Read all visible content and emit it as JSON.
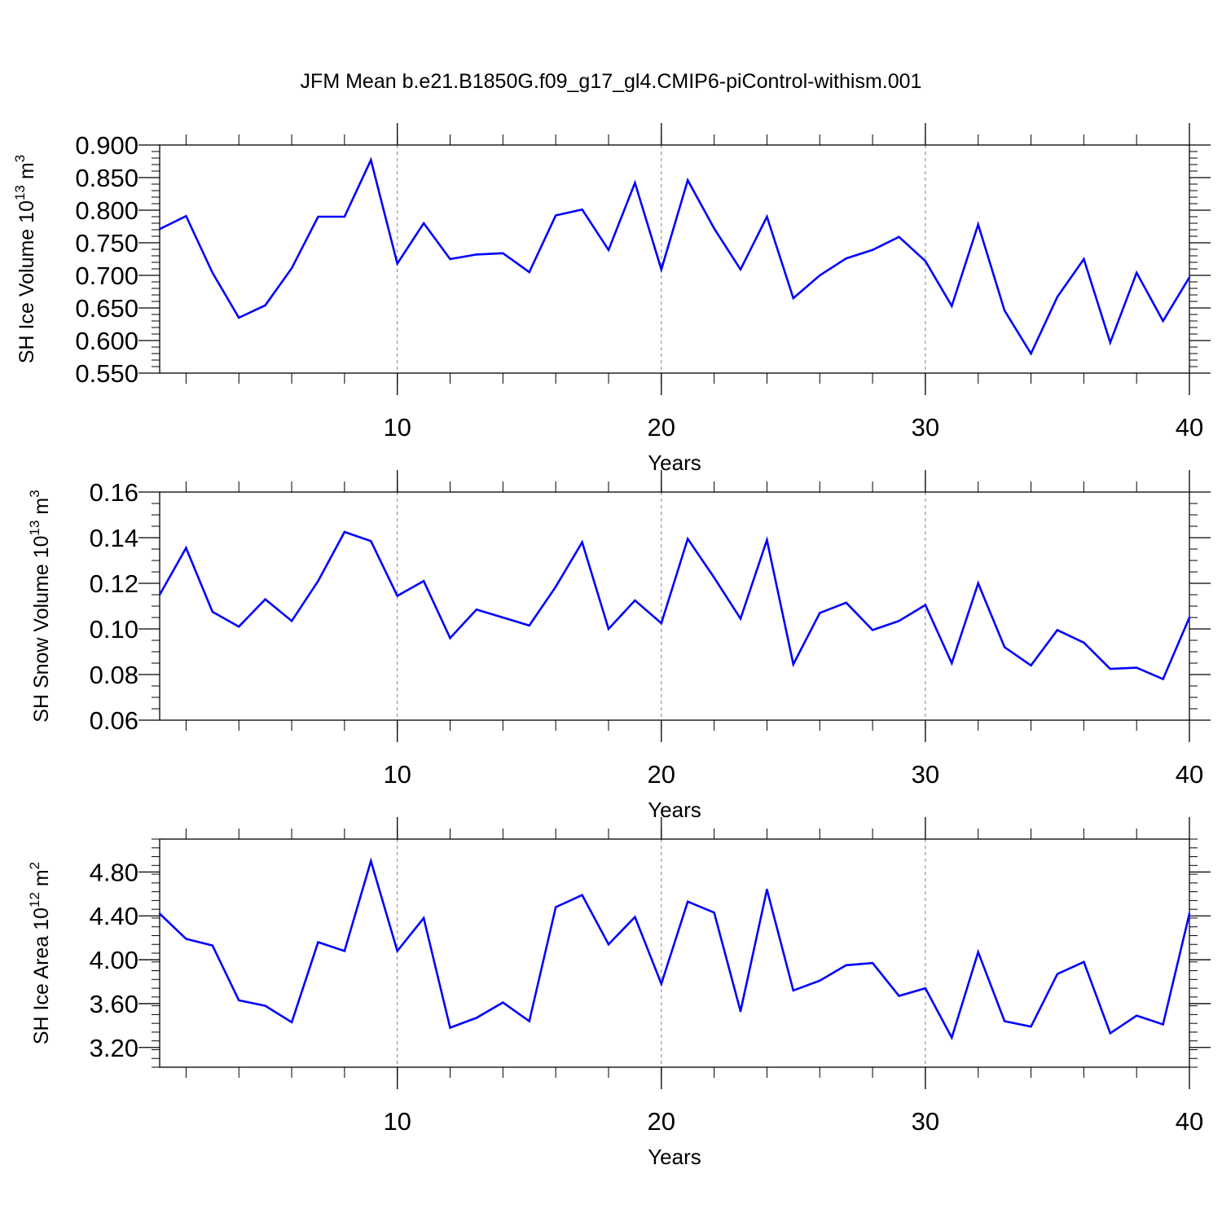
{
  "title": "JFM Mean b.e21.B1850G.f09_g17_gl4.CMIP6-piControl-withism.001",
  "colors": {
    "line": "#0000ff",
    "axis": "#000000",
    "grid": "#808080",
    "background": "#ffffff"
  },
  "chart_data": [
    {
      "type": "line",
      "name": "sh-ice-volume",
      "title": "JFM Mean b.e21.B1850G.f09_g17_gl4.CMIP6-piControl-withism.001",
      "ylabel_main": "SH Ice Volume 10",
      "ylabel_exp": "13",
      "ylabel_unit": " m",
      "ylabel_unit_exp": "3",
      "xlabel": "Years",
      "xlim": [
        1,
        40
      ],
      "ylim": [
        0.55,
        0.9
      ],
      "yticks": [
        0.55,
        0.6,
        0.65,
        0.7,
        0.75,
        0.8,
        0.85,
        0.9
      ],
      "ytick_labels": [
        "0.550",
        "0.600",
        "0.650",
        "0.700",
        "0.750",
        "0.800",
        "0.850",
        "0.900"
      ],
      "yminor_step": 0.01,
      "xticks": [
        10,
        20,
        30,
        40
      ],
      "xtick_labels": [
        "10",
        "20",
        "30",
        "40"
      ],
      "grid_x": [
        10,
        20,
        30
      ],
      "x": [
        1,
        2,
        3,
        4,
        5,
        6,
        7,
        8,
        9,
        10,
        11,
        12,
        13,
        14,
        15,
        16,
        17,
        18,
        19,
        20,
        21,
        22,
        23,
        24,
        25,
        26,
        27,
        28,
        29,
        30,
        31,
        32,
        33,
        34,
        35,
        36,
        37,
        38,
        39,
        40
      ],
      "values": [
        0.771,
        0.791,
        0.704,
        0.635,
        0.654,
        0.711,
        0.79,
        0.79,
        0.877,
        0.718,
        0.78,
        0.725,
        0.732,
        0.734,
        0.705,
        0.792,
        0.801,
        0.739,
        0.842,
        0.709,
        0.846,
        0.772,
        0.709,
        0.79,
        0.665,
        0.7,
        0.726,
        0.739,
        0.759,
        0.722,
        0.653,
        0.778,
        0.646,
        0.58,
        0.667,
        0.725,
        0.597,
        0.704,
        0.63,
        0.697
      ]
    },
    {
      "type": "line",
      "name": "sh-snow-volume",
      "ylabel_main": "SH Snow Volume 10",
      "ylabel_exp": "13",
      "ylabel_unit": " m",
      "ylabel_unit_exp": "3",
      "xlabel": "Years",
      "xlim": [
        1,
        40
      ],
      "ylim": [
        0.06,
        0.16
      ],
      "yticks": [
        0.06,
        0.08,
        0.1,
        0.12,
        0.14,
        0.16
      ],
      "ytick_labels": [
        "0.06",
        "0.08",
        "0.10",
        "0.12",
        "0.14",
        "0.16"
      ],
      "yminor_step": 0.005,
      "xticks": [
        10,
        20,
        30,
        40
      ],
      "xtick_labels": [
        "10",
        "20",
        "30",
        "40"
      ],
      "grid_x": [
        10,
        20,
        30
      ],
      "x": [
        1,
        2,
        3,
        4,
        5,
        6,
        7,
        8,
        9,
        10,
        11,
        12,
        13,
        14,
        15,
        16,
        17,
        18,
        19,
        20,
        21,
        22,
        23,
        24,
        25,
        26,
        27,
        28,
        29,
        30,
        31,
        32,
        33,
        34,
        35,
        36,
        37,
        38,
        39,
        40
      ],
      "values": [
        0.115,
        0.1355,
        0.1075,
        0.101,
        0.113,
        0.1035,
        0.121,
        0.1425,
        0.1385,
        0.1145,
        0.121,
        0.096,
        0.1085,
        0.105,
        0.1015,
        0.1185,
        0.138,
        0.1,
        0.1125,
        0.1025,
        0.1395,
        0.1225,
        0.1045,
        0.139,
        0.0845,
        0.107,
        0.1115,
        0.0995,
        0.1035,
        0.1105,
        0.085,
        0.12,
        0.092,
        0.084,
        0.0995,
        0.094,
        0.0825,
        0.083,
        0.078,
        0.105
      ]
    },
    {
      "type": "line",
      "name": "sh-ice-area",
      "ylabel_main": "SH Ice Area 10",
      "ylabel_exp": "12",
      "ylabel_unit": " m",
      "ylabel_unit_exp": "2",
      "xlabel": "Years",
      "xlim": [
        1,
        40
      ],
      "ylim": [
        3.02,
        5.1
      ],
      "yticks": [
        3.2,
        3.6,
        4.0,
        4.4,
        4.8
      ],
      "ytick_labels": [
        "3.20",
        "3.60",
        "4.00",
        "4.40",
        "4.80"
      ],
      "yminor_step": 0.08,
      "xticks": [
        10,
        20,
        30,
        40
      ],
      "xtick_labels": [
        "10",
        "20",
        "30",
        "40"
      ],
      "grid_x": [
        10,
        20,
        30
      ],
      "x": [
        1,
        2,
        3,
        4,
        5,
        6,
        7,
        8,
        9,
        10,
        11,
        12,
        13,
        14,
        15,
        16,
        17,
        18,
        19,
        20,
        21,
        22,
        23,
        24,
        25,
        26,
        27,
        28,
        29,
        30,
        31,
        32,
        33,
        34,
        35,
        36,
        37,
        38,
        39,
        40
      ],
      "values": [
        4.42,
        4.19,
        4.13,
        3.63,
        3.58,
        3.43,
        4.16,
        4.08,
        4.9,
        4.08,
        4.38,
        3.38,
        3.47,
        3.61,
        3.44,
        4.48,
        4.59,
        4.14,
        4.39,
        3.78,
        4.53,
        4.43,
        3.53,
        4.64,
        3.72,
        3.81,
        3.95,
        3.97,
        3.67,
        3.74,
        3.29,
        4.07,
        3.44,
        3.39,
        3.87,
        3.98,
        3.33,
        3.49,
        3.41,
        4.42
      ]
    }
  ]
}
